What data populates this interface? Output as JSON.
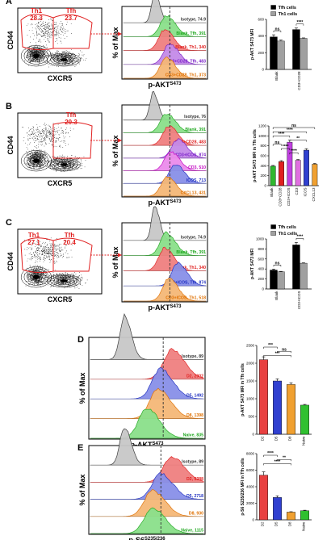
{
  "panels": [
    {
      "label": "A",
      "scatter": {
        "ylabel": "CD44",
        "xlabel": "CXCR5",
        "gates": [
          {
            "name": "Th1",
            "value": "28.3"
          },
          {
            "name": "Tfh",
            "value": "23.7"
          }
        ]
      },
      "histogram": {
        "ylabel": "% of Max",
        "xlabel_main": "p-AKT",
        "xlabel_sup": "S473",
        "labels": [
          {
            "text": "Isotype, 74.9",
            "color": "#333333"
          },
          {
            "text": "Blank, Tfh, 391",
            "color": "#1fa81f"
          },
          {
            "text": "Blank, Th1, 340",
            "color": "#e02020"
          },
          {
            "text": "CD3+CD28, Tfh, 483",
            "color": "#7a20c8"
          },
          {
            "text": "CD3+CD28, Th1, 373",
            "color": "#e07000"
          }
        ]
      }
    },
    {
      "label": "B",
      "scatter": {
        "ylabel": "CD44",
        "xlabel": "CXCR5",
        "gates": [
          {
            "name": "Tfh",
            "value": "20.3"
          }
        ]
      },
      "histogram": {
        "ylabel": "% of Max",
        "xlabel_main": "p-AKT",
        "xlabel_sup": "S473",
        "labels": [
          {
            "text": "Isotype, 76",
            "color": "#333333"
          },
          {
            "text": "Blank, 391",
            "color": "#1fa81f"
          },
          {
            "text": "CD3+CD28, 483",
            "color": "#e02020"
          },
          {
            "text": "CD3+ICOS, 874",
            "color": "#7a20c8"
          },
          {
            "text": "CD3, 510",
            "color": "#c000c0"
          },
          {
            "text": "ICOS, 713",
            "color": "#2030c0"
          },
          {
            "text": "CXCL13, 431",
            "color": "#e07000"
          }
        ]
      }
    },
    {
      "label": "C",
      "scatter": {
        "ylabel": "CD44",
        "xlabel": "CXCR5",
        "gates": [
          {
            "name": "Th1",
            "value": "27.1"
          },
          {
            "name": "Tfh",
            "value": "20.4"
          }
        ]
      },
      "histogram": {
        "ylabel": "% of Max",
        "xlabel_main": "p-AKT",
        "xlabel_sup": "S473",
        "labels": [
          {
            "text": "Isotype, 74.9",
            "color": "#333333"
          },
          {
            "text": "Blank, Tfh, 391",
            "color": "#1fa81f"
          },
          {
            "text": "Blank, Th1, 340",
            "color": "#e02020"
          },
          {
            "text": "CD3+ICOS, Tfh, 874",
            "color": "#2030c0"
          },
          {
            "text": "CD3+ICOS, Th1, 518",
            "color": "#e07000"
          }
        ]
      }
    },
    {
      "label": "D",
      "histogram": {
        "ylabel": "% of Max",
        "xlabel_main": "p-AKT",
        "xlabel_sup": "S473",
        "labels": [
          {
            "text": "Isotype, 89",
            "color": "#333333"
          },
          {
            "text": "D2, 2902",
            "color": "#e02020"
          },
          {
            "text": "D5, 1492",
            "color": "#2030c0"
          },
          {
            "text": "D8, 1398",
            "color": "#e07000"
          },
          {
            "text": "Naive, 835",
            "color": "#1fa81f"
          }
        ]
      }
    },
    {
      "label": "E",
      "histogram": {
        "ylabel": "% of Max",
        "xlabel_main": "p-S6",
        "xlabel_sup": "S235/236",
        "labels": [
          {
            "text": "Isotype, 89",
            "color": "#333333"
          },
          {
            "text": "D2, 5388",
            "color": "#e02020"
          },
          {
            "text": "D5, 2718",
            "color": "#2030c0"
          },
          {
            "text": "D8, 930",
            "color": "#e07000"
          },
          {
            "text": "Naive, 1115",
            "color": "#1fa81f"
          }
        ]
      }
    }
  ],
  "chart_data": [
    {
      "panel": "A",
      "type": "bar",
      "ylabel": "p-AKT S473 MFI",
      "ylim": [
        0,
        600
      ],
      "yticks": [
        0,
        200,
        400,
        600
      ],
      "categories": [
        "Blank",
        "CD3+CD28"
      ],
      "series": [
        {
          "name": "Tfh cells",
          "color": "#000000",
          "values": [
            390,
            478
          ],
          "errors": [
            25,
            18
          ]
        },
        {
          "name": "Th1 cells",
          "color": "#a0a0a0",
          "values": [
            340,
            372
          ],
          "errors": [
            12,
            6
          ]
        }
      ],
      "legend": "top-right",
      "significance": [
        {
          "label": "ns",
          "pair": [
            0,
            0
          ]
        },
        {
          "label": "****",
          "pair": [
            1,
            1
          ]
        }
      ]
    },
    {
      "panel": "B",
      "type": "bar",
      "ylabel": "p-AKT S473 MFI in Tfh cells",
      "ylim": [
        0,
        1200
      ],
      "yticks": [
        0,
        200,
        400,
        600,
        800,
        1000,
        1200
      ],
      "categories": [
        "Blank",
        "CD3+CD28",
        "CD3+ICOS",
        "CD3",
        "ICOS",
        "CXCL13"
      ],
      "series": [
        {
          "name": "",
          "colors": [
            "#2fb82f",
            "#e02020",
            "#c040e0",
            "#e070e0",
            "#3040d0",
            "#f0a030"
          ],
          "values": [
            391,
            483,
            874,
            510,
            713,
            431
          ],
          "errors": [
            15,
            20,
            40,
            15,
            30,
            15
          ]
        }
      ],
      "significance": [
        {
          "label": "ns",
          "pair": [
            0,
            5
          ]
        },
        {
          "label": "****",
          "pair": [
            0,
            4
          ]
        },
        {
          "label": "****",
          "pair": [
            0,
            2
          ]
        },
        {
          "label": "**",
          "pair": [
            2,
            4
          ]
        },
        {
          "label": "ns",
          "pair": [
            0,
            1
          ]
        },
        {
          "label": "****",
          "pair": [
            1,
            2
          ]
        },
        {
          "label": "****",
          "pair": [
            2,
            3
          ]
        }
      ]
    },
    {
      "panel": "C",
      "type": "bar",
      "ylabel": "p-AKT S473 MFI",
      "ylim": [
        0,
        1000
      ],
      "yticks": [
        0,
        200,
        400,
        600,
        800,
        1000
      ],
      "categories": [
        "Blank",
        "CD3+ICOS"
      ],
      "series": [
        {
          "name": "Tfh cells",
          "color": "#000000",
          "values": [
            378,
            880
          ],
          "errors": [
            20,
            50
          ]
        },
        {
          "name": "Th1 cells",
          "color": "#a0a0a0",
          "values": [
            342,
            515
          ],
          "errors": [
            10,
            8
          ]
        }
      ],
      "legend": "top-right",
      "significance": [
        {
          "label": "ns",
          "pair": [
            0,
            0
          ]
        },
        {
          "label": "****",
          "pair": [
            1,
            1
          ]
        }
      ]
    },
    {
      "panel": "D",
      "type": "bar",
      "ylabel": "p-AKT S473 MFI in Tfh cells",
      "ylim": [
        0,
        2500
      ],
      "yticks": [
        0,
        500,
        1000,
        1500,
        2000,
        2500
      ],
      "categories": [
        "D2",
        "D5",
        "D8",
        "Naive"
      ],
      "series": [
        {
          "name": "",
          "colors": [
            "#e84040",
            "#3040d0",
            "#f0a030",
            "#30c030"
          ],
          "values": [
            2100,
            1500,
            1400,
            820
          ],
          "errors": [
            80,
            60,
            50,
            20
          ]
        }
      ],
      "significance": [
        {
          "label": "***",
          "pair": [
            0,
            1
          ]
        },
        {
          "label": "ns",
          "pair": [
            1,
            2
          ]
        },
        {
          "label": "***",
          "pair": [
            0,
            2
          ]
        }
      ]
    },
    {
      "panel": "E",
      "type": "bar",
      "ylabel": "p-S6 S235/236 MFI in Tfh cells",
      "ylim": [
        0,
        8000
      ],
      "yticks": [
        0,
        2000,
        4000,
        6000,
        8000
      ],
      "categories": [
        "D2",
        "D5",
        "D8",
        "Naive"
      ],
      "series": [
        {
          "name": "",
          "colors": [
            "#e84040",
            "#3040d0",
            "#f0a030",
            "#30c030"
          ],
          "values": [
            5400,
            2700,
            930,
            1100
          ],
          "errors": [
            400,
            200,
            50,
            60
          ]
        }
      ],
      "significance": [
        {
          "label": "****",
          "pair": [
            0,
            1
          ]
        },
        {
          "label": "**",
          "pair": [
            1,
            2
          ]
        },
        {
          "label": "****",
          "pair": [
            0,
            2
          ]
        }
      ]
    }
  ]
}
